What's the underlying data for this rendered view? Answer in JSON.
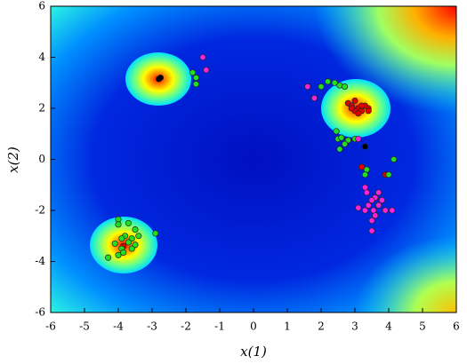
{
  "chart_data": {
    "type": "scatter",
    "x_label": "x(1)",
    "y_label": "x(2)",
    "xlim": [
      -6,
      6
    ],
    "ylim": [
      -6,
      6
    ],
    "xticks": [
      -6,
      -5,
      -4,
      -3,
      -2,
      -1,
      0,
      1,
      2,
      3,
      4,
      5,
      6
    ],
    "yticks": [
      -6,
      -4,
      -2,
      0,
      2,
      4,
      6
    ],
    "series": [
      {
        "name": "black",
        "color": "#000000",
        "x": [
          -2.8,
          -2.75,
          3.3
        ],
        "y": [
          3.15,
          3.2,
          0.5
        ]
      },
      {
        "name": "red",
        "color": "#e00000",
        "x": [
          2.8,
          2.9,
          3.0,
          3.1,
          3.2,
          3.3,
          3.0,
          2.9,
          3.2,
          3.4,
          3.1,
          3.4,
          3.2,
          3.9,
          -3.85
        ],
        "y": [
          2.2,
          2.1,
          2.3,
          2.0,
          1.9,
          2.1,
          1.9,
          2.0,
          2.1,
          2.0,
          1.8,
          1.9,
          -0.3,
          -0.6,
          -3.4
        ]
      },
      {
        "name": "green",
        "color": "#22dd22",
        "x": [
          -1.8,
          -1.7,
          -1.7,
          2.0,
          2.2,
          2.4,
          2.55,
          2.7,
          2.45,
          2.5,
          2.6,
          2.8,
          2.55,
          2.7,
          3.0,
          4.15,
          4.0,
          3.35,
          3.3,
          -4.0,
          -4.0,
          -3.7,
          -3.5,
          -3.8,
          -3.9,
          -3.6,
          -3.4,
          -4.1,
          -3.7,
          -3.5,
          -3.9,
          -4.0,
          -4.3,
          -3.85,
          -3.6,
          -2.9
        ],
        "y": [
          3.4,
          3.2,
          2.95,
          2.85,
          3.05,
          3.0,
          2.9,
          2.85,
          1.1,
          0.8,
          0.85,
          0.75,
          0.4,
          0.6,
          0.8,
          0.0,
          -0.6,
          -0.4,
          -0.6,
          -2.35,
          -2.55,
          -2.5,
          -2.75,
          -3.0,
          -3.1,
          -3.1,
          -3.0,
          -3.3,
          -3.25,
          -3.35,
          -3.5,
          -3.75,
          -3.85,
          -3.65,
          -3.5,
          -2.9
        ]
      },
      {
        "name": "magenta",
        "color": "#ff22dd",
        "x": [
          -1.5,
          -1.4,
          1.6,
          1.8,
          3.1,
          3.7,
          3.6,
          3.5,
          3.8,
          3.4,
          3.7,
          3.55,
          3.3,
          3.1,
          3.6,
          3.5,
          3.9,
          4.1,
          3.5,
          3.3,
          3.35
        ],
        "y": [
          4.0,
          3.5,
          2.85,
          2.4,
          0.8,
          -1.3,
          -1.5,
          -1.6,
          -1.6,
          -1.8,
          -1.8,
          -2.0,
          -2.0,
          -1.9,
          -2.2,
          -2.4,
          -2.0,
          -2.0,
          -2.8,
          -1.1,
          -1.3
        ]
      }
    ]
  }
}
